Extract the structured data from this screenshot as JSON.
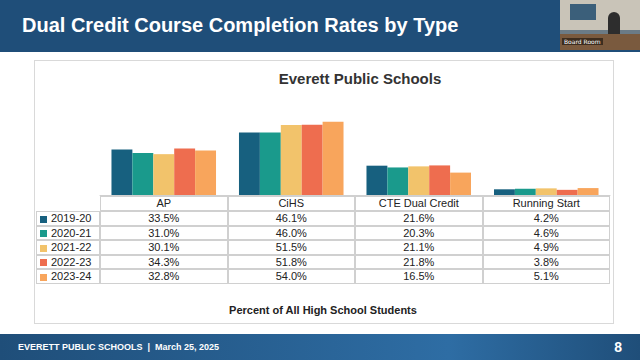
{
  "slide": {
    "title": "Dual Credit Course Completion Rates by Type",
    "footer": "EVERETT PUBLIC SCHOOLS  |  March 25, 2025",
    "page": 8,
    "video_label": "Board Room"
  },
  "chart_data": {
    "type": "bar",
    "title": "Everett Public Schools",
    "xlabel": "Percent of All High School Students",
    "categories": [
      "AP",
      "CiHS",
      "CTE Dual Credit",
      "Running Start"
    ],
    "series": [
      {
        "name": "2019-20",
        "color": "#17607f",
        "values": [
          33.5,
          46.1,
          21.6,
          4.2
        ],
        "value_labels": [
          "33.5%",
          "46.1%",
          "21.6%",
          "4.2%"
        ]
      },
      {
        "name": "2020-21",
        "color": "#1a9a8c",
        "values": [
          31.0,
          46.0,
          20.3,
          4.6
        ],
        "value_labels": [
          "31.0%",
          "46.0%",
          "20.3%",
          "4.6%"
        ]
      },
      {
        "name": "2021-22",
        "color": "#f2c36b",
        "values": [
          30.1,
          51.5,
          21.1,
          4.9
        ],
        "value_labels": [
          "30.1%",
          "51.5%",
          "21.1%",
          "4.9%"
        ]
      },
      {
        "name": "2022-23",
        "color": "#ee6d4f",
        "values": [
          34.3,
          51.8,
          21.8,
          3.8
        ],
        "value_labels": [
          "34.3%",
          "51.8%",
          "21.8%",
          "3.8%"
        ]
      },
      {
        "name": "2023-24",
        "color": "#f8a55c",
        "values": [
          32.8,
          54.0,
          16.5,
          5.1
        ],
        "value_labels": [
          "32.8%",
          "54.0%",
          "16.5%",
          "5.1%"
        ]
      }
    ],
    "ylim": [
      0,
      70
    ],
    "yticks": [
      0,
      35,
      70
    ],
    "grid": false,
    "tick_labels": "x"
  }
}
